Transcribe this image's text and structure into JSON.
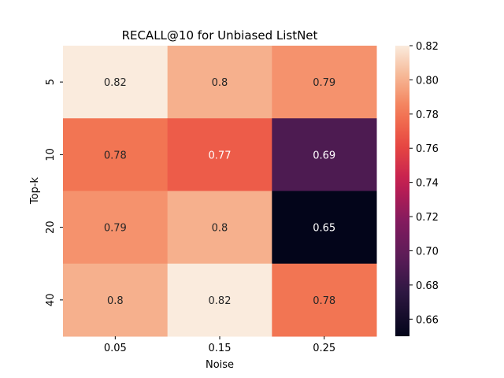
{
  "chart_data": {
    "type": "heatmap",
    "title": "RECALL@10 for Unbiased ListNet",
    "xlabel": "Noise",
    "ylabel": "Top-k",
    "x_categories": [
      "0.05",
      "0.15",
      "0.25"
    ],
    "y_categories": [
      "5",
      "10",
      "20",
      "40"
    ],
    "values": [
      [
        0.82,
        0.8,
        0.79
      ],
      [
        0.78,
        0.77,
        0.69
      ],
      [
        0.79,
        0.8,
        0.65
      ],
      [
        0.8,
        0.82,
        0.78
      ]
    ],
    "cell_labels": [
      [
        "0.82",
        "0.8",
        "0.79"
      ],
      [
        "0.78",
        "0.77",
        "0.69"
      ],
      [
        "0.79",
        "0.8",
        "0.65"
      ],
      [
        "0.8",
        "0.82",
        "0.78"
      ]
    ],
    "colorbar": {
      "colormap": "rocket",
      "vmin": 0.65,
      "vmax": 0.82,
      "ticks": [
        0.66,
        0.68,
        0.7,
        0.72,
        0.74,
        0.76,
        0.78,
        0.8,
        0.82
      ],
      "tick_labels": [
        "0.66",
        "0.68",
        "0.70",
        "0.72",
        "0.74",
        "0.76",
        "0.78",
        "0.80",
        "0.82"
      ]
    }
  }
}
